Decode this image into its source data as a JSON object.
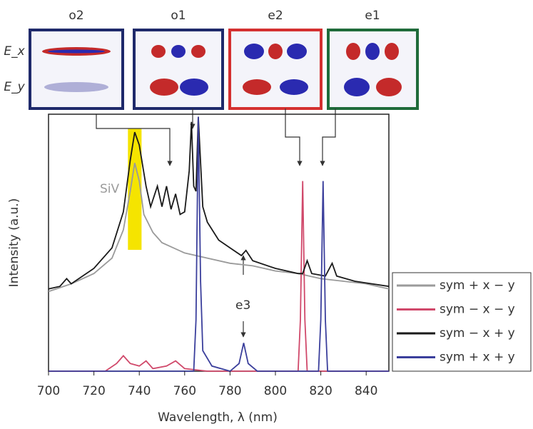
{
  "chart_data": {
    "type": "line",
    "xlabel": "Wavelength, λ (nm)",
    "ylabel": "Intensity (a.u.)",
    "xlim": [
      700,
      850
    ],
    "xticks": [
      700,
      720,
      740,
      760,
      780,
      800,
      820,
      840
    ],
    "ylim": [
      0,
      100
    ],
    "highlight": {
      "range": [
        735,
        741
      ],
      "color": "#f5e400"
    },
    "annotations": [
      "SiV",
      "e3"
    ],
    "mode_labels": [
      "o2",
      "o1",
      "e2",
      "e1"
    ],
    "field_labels": [
      "E_x",
      "E_y"
    ],
    "legend": "right",
    "series": [
      {
        "name": "sym + x − y",
        "color": "#9a9a9a",
        "x": [
          700,
          710,
          720,
          728,
          733,
          736,
          738,
          740,
          742,
          746,
          750,
          760,
          770,
          780,
          790,
          800,
          810,
          820,
          830,
          840,
          850
        ],
        "values": [
          31,
          34,
          38,
          44,
          55,
          70,
          81,
          74,
          61,
          54,
          50,
          46,
          44,
          42,
          41,
          39,
          38,
          36,
          35,
          34,
          32
        ]
      },
      {
        "name": "sym − x − y",
        "color": "#d0486a",
        "x": [
          700,
          725,
          730,
          733,
          736,
          740,
          743,
          746,
          752,
          756,
          760,
          770,
          800,
          810,
          811,
          812,
          813,
          814,
          820,
          850
        ],
        "values": [
          0,
          0,
          3,
          6,
          3,
          2,
          4,
          1,
          2,
          4,
          1,
          0,
          0,
          0,
          20,
          74,
          20,
          0,
          0,
          0
        ]
      },
      {
        "name": "sym − x + y",
        "color": "#1a1a1a",
        "x": [
          700,
          705,
          708,
          710,
          720,
          728,
          733,
          736,
          738,
          740,
          743,
          745,
          748,
          750,
          752,
          754,
          756,
          758,
          760,
          762,
          763,
          764,
          765,
          766,
          768,
          770,
          775,
          780,
          785,
          787,
          790,
          800,
          810,
          812,
          814,
          816,
          822,
          825,
          827,
          835,
          850
        ],
        "values": [
          32,
          33,
          36,
          34,
          40,
          48,
          62,
          82,
          93,
          88,
          72,
          64,
          72,
          64,
          72,
          63,
          69,
          61,
          62,
          78,
          97,
          72,
          70,
          99,
          64,
          58,
          51,
          48,
          45,
          47,
          43,
          40,
          38,
          38,
          43,
          38,
          37,
          42,
          37,
          35,
          33
        ]
      },
      {
        "name": "sym + x + y",
        "color": "#3b3f9c",
        "x": [
          700,
          760,
          764,
          765,
          766,
          767,
          768,
          772,
          780,
          784,
          786,
          788,
          792,
          810,
          819,
          820,
          821,
          822,
          823,
          850
        ],
        "values": [
          0,
          0,
          0,
          20,
          99,
          35,
          8,
          2,
          0,
          3,
          11,
          3,
          0,
          0,
          0,
          20,
          74,
          20,
          0,
          0
        ]
      }
    ]
  }
}
